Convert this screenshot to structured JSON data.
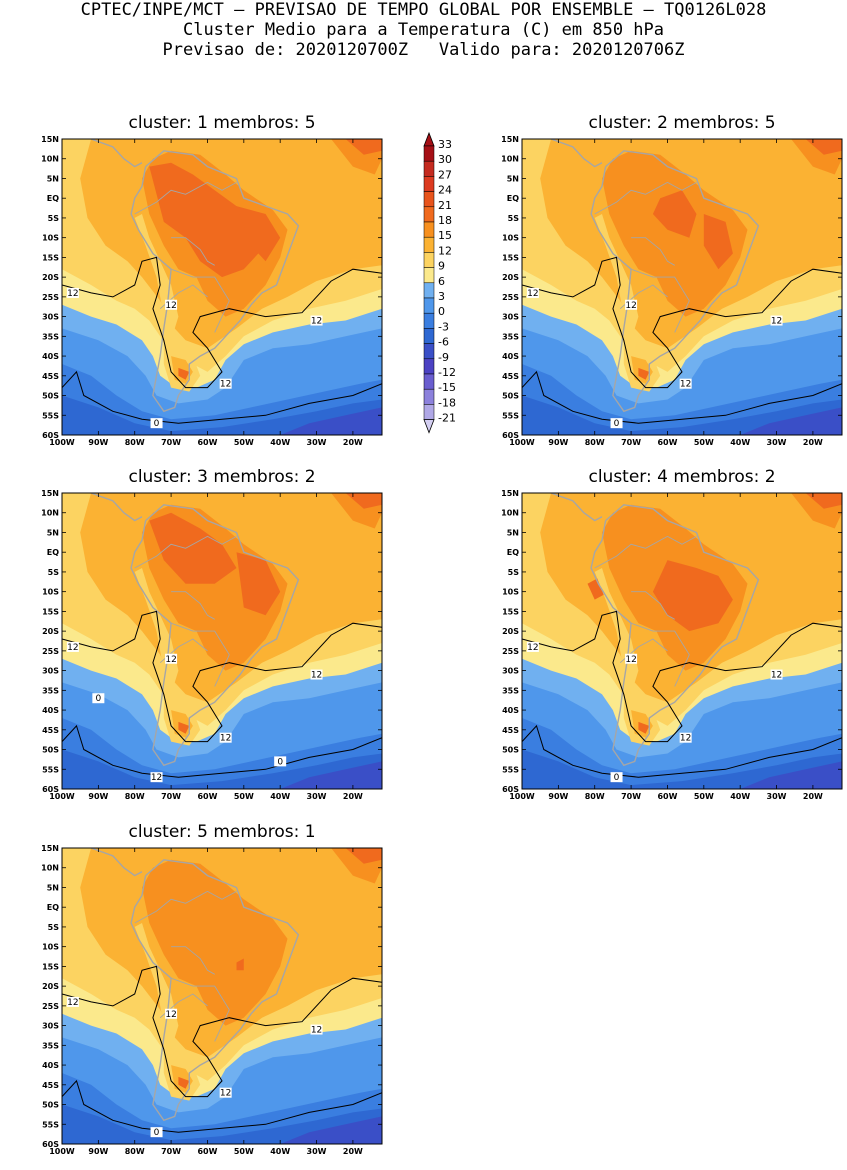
{
  "header": {
    "line1": "CPTEC/INPE/MCT – PREVISAO DE TEMPO GLOBAL POR ENSEMBLE – TQ0126L028",
    "line2": "Cluster Medio para a Temperatura (C) em 850 hPa",
    "line3": "Previsao de: 2020120700Z   Valido para: 2020120706Z"
  },
  "axes": {
    "lat_ticks": [
      "15N",
      "10N",
      "5N",
      "EQ",
      "5S",
      "10S",
      "15S",
      "20S",
      "25S",
      "30S",
      "35S",
      "40S",
      "45S",
      "50S",
      "55S",
      "60S"
    ],
    "lon_ticks": [
      "100W",
      "90W",
      "80W",
      "70W",
      "60W",
      "50W",
      "40W",
      "30W",
      "20W"
    ]
  },
  "panels": [
    {
      "cluster_label": "cluster:",
      "cluster": "1",
      "members_label": "membros:",
      "members": "5",
      "contour_labels": [
        "12",
        "12",
        "12",
        "12",
        "0"
      ]
    },
    {
      "cluster_label": "cluster:",
      "cluster": "2",
      "members_label": "membros:",
      "members": "5",
      "contour_labels": [
        "12",
        "12",
        "12",
        "12",
        "0"
      ]
    },
    {
      "cluster_label": "cluster:",
      "cluster": "3",
      "members_label": "membros:",
      "members": "2",
      "contour_labels": [
        "12",
        "12",
        "12",
        "12",
        "12",
        "0",
        "0"
      ]
    },
    {
      "cluster_label": "cluster:",
      "cluster": "4",
      "members_label": "membros:",
      "members": "2",
      "contour_labels": [
        "12",
        "12",
        "12",
        "12",
        "0"
      ]
    },
    {
      "cluster_label": "cluster:",
      "cluster": "5",
      "members_label": "membros:",
      "members": "1",
      "contour_labels": [
        "12",
        "12",
        "12",
        "12",
        "0"
      ]
    }
  ],
  "legend": {
    "levels": [
      "33",
      "30",
      "27",
      "24",
      "21",
      "18",
      "15",
      "12",
      "9",
      "6",
      "3",
      "0",
      "-3",
      "-6",
      "-9",
      "-12",
      "-15",
      "-18",
      "-21"
    ],
    "colors": [
      "#a50f15",
      "#c42a1f",
      "#dc3a20",
      "#e8541c",
      "#f06a1e",
      "#f7901f",
      "#fbb233",
      "#fcd361",
      "#fbe98c",
      "#70b0f0",
      "#4f97eb",
      "#3a7ee0",
      "#2e68d2",
      "#3a4fc7",
      "#4c42c3",
      "#6a5ecf",
      "#8c81dc",
      "#b0a8e6",
      "#d4cff2"
    ]
  },
  "palette": {
    "coast": "#a6a6a6",
    "contour": "#000000"
  }
}
